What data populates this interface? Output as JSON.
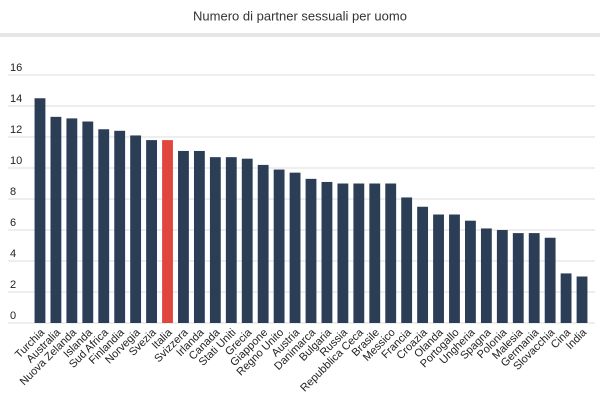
{
  "chart_data": {
    "type": "bar",
    "title": "Numero di partner sessuali per uomo",
    "categories": [
      "Turchia",
      "Australia",
      "Nuova Zelanda",
      "Islanda",
      "Sud Africa",
      "Finlandia",
      "Norvegia",
      "Svezia",
      "Italia",
      "Svizzera",
      "Irlanda",
      "Canada",
      "Stati Uniti",
      "Grecia",
      "Giappone",
      "Regno Unito",
      "Austria",
      "Danimarca",
      "Bulgaria",
      "Russia",
      "Repubblica Ceca",
      "Brasile",
      "Messico",
      "Francia",
      "Croazia",
      "Olanda",
      "Portogallo",
      "Ungheria",
      "Spagna",
      "Polonia",
      "Malesia",
      "Germania",
      "Slovacchia",
      "Cina",
      "India"
    ],
    "values": [
      14.5,
      13.3,
      13.2,
      13.0,
      12.5,
      12.4,
      12.1,
      11.8,
      11.8,
      11.1,
      11.1,
      10.7,
      10.7,
      10.6,
      10.2,
      9.9,
      9.7,
      9.3,
      9.1,
      9.0,
      9.0,
      9.0,
      9.0,
      8.1,
      7.5,
      7.0,
      7.0,
      6.6,
      6.1,
      6.0,
      5.8,
      5.8,
      5.5,
      3.2,
      3.0
    ],
    "colors": [
      "#2c3e55",
      "#2c3e55",
      "#2c3e55",
      "#2c3e55",
      "#2c3e55",
      "#2c3e55",
      "#2c3e55",
      "#2c3e55",
      "#e0463e",
      "#2c3e55",
      "#2c3e55",
      "#2c3e55",
      "#2c3e55",
      "#2c3e55",
      "#2c3e55",
      "#2c3e55",
      "#2c3e55",
      "#2c3e55",
      "#2c3e55",
      "#2c3e55",
      "#2c3e55",
      "#2c3e55",
      "#2c3e55",
      "#2c3e55",
      "#2c3e55",
      "#2c3e55",
      "#2c3e55",
      "#2c3e55",
      "#2c3e55",
      "#2c3e55",
      "#2c3e55",
      "#2c3e55",
      "#2c3e55",
      "#2c3e55",
      "#2c3e55"
    ],
    "ylim": [
      0,
      16
    ],
    "yticks": [
      0,
      2,
      4,
      6,
      8,
      10,
      12,
      14,
      16
    ],
    "grid": true
  }
}
